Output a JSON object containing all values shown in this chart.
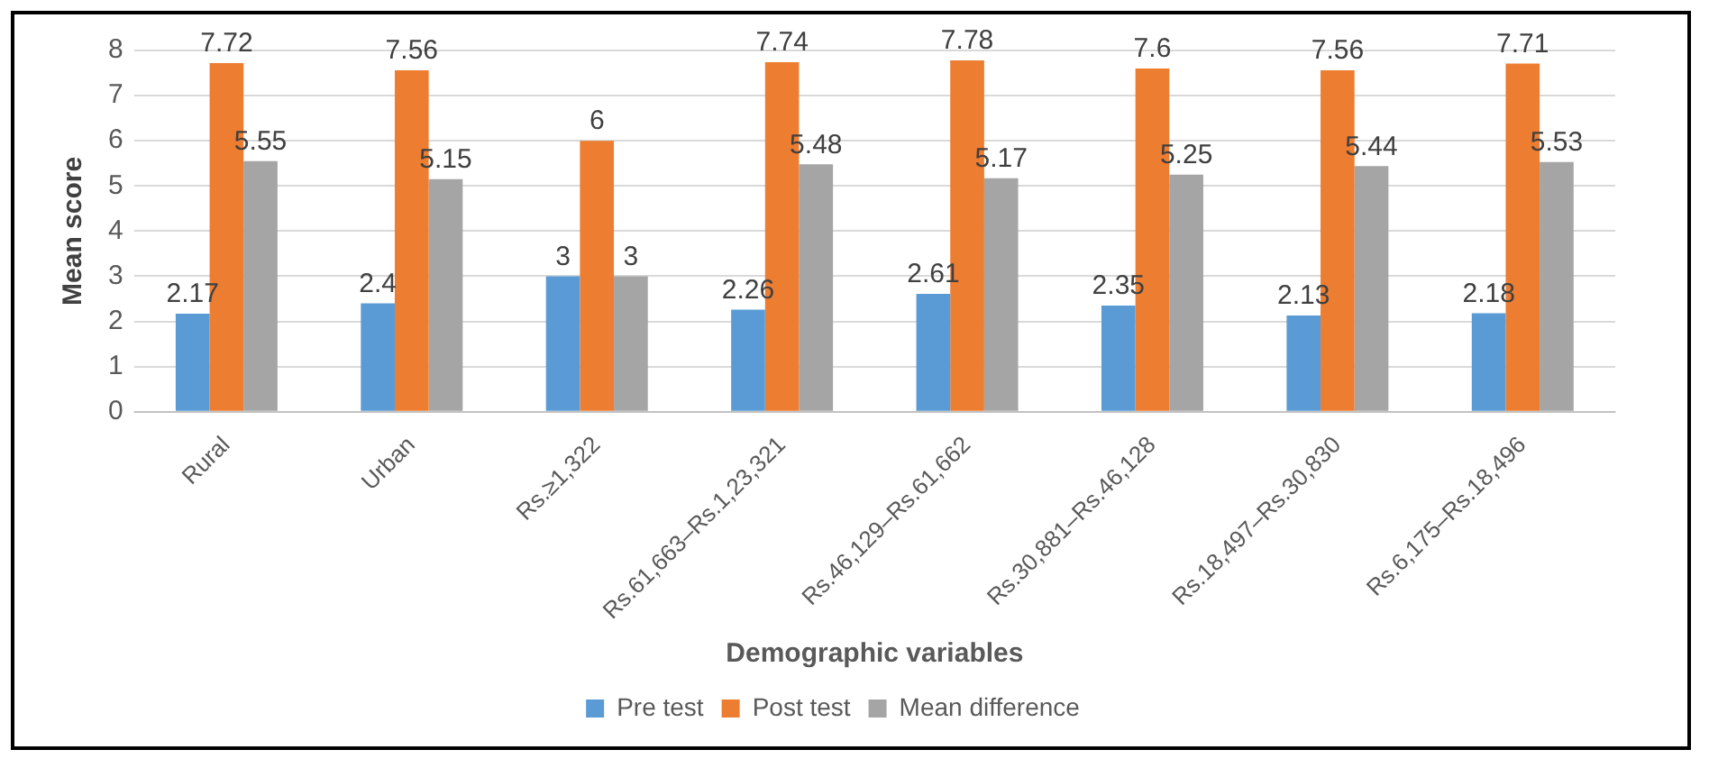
{
  "chart_data": {
    "type": "bar",
    "xlabel": "Demographic variables",
    "ylabel": "Mean score",
    "categories": [
      "Rural",
      "Urban",
      "Rs.≥1,322",
      "Rs.61,663–Rs.1,23,321",
      "Rs.46,129–Rs.61,662",
      "Rs.30,881–Rs.46,128",
      "Rs.18,497–Rs.30,830",
      "Rs.6,175–Rs.18,496"
    ],
    "series": [
      {
        "name": "Pre test",
        "color": "#5b9bd5",
        "values": [
          2.17,
          2.4,
          3,
          2.26,
          2.61,
          2.35,
          2.13,
          2.18
        ]
      },
      {
        "name": "Post test",
        "color": "#ed7d31",
        "values": [
          7.72,
          7.56,
          6,
          7.74,
          7.78,
          7.6,
          7.56,
          7.71
        ]
      },
      {
        "name": "Mean difference",
        "color": "#a5a5a5",
        "values": [
          5.55,
          5.15,
          3,
          5.48,
          5.17,
          5.25,
          5.44,
          5.53
        ]
      }
    ],
    "ylim": [
      0,
      8
    ],
    "yticks": [
      0,
      1,
      2,
      3,
      4,
      5,
      6,
      7,
      8
    ],
    "grid": "y",
    "legend": "bottom",
    "data_labels": true
  }
}
